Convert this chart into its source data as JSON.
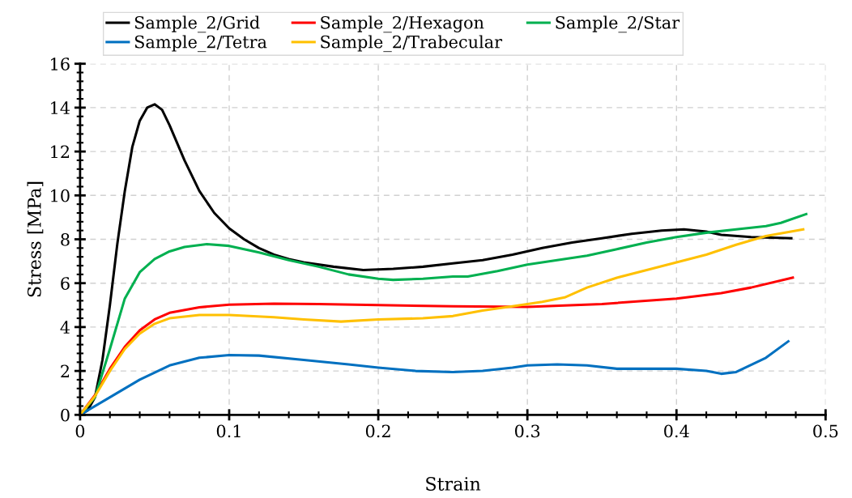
{
  "chart_data": {
    "type": "line",
    "xlabel": "Strain",
    "ylabel": "Stress [MPa]",
    "xlim": [
      0,
      0.5
    ],
    "xticks": [
      0,
      0.1,
      0.2,
      0.3,
      0.4,
      0.5
    ],
    "ylim": [
      0,
      16
    ],
    "yticks": [
      0,
      2,
      4,
      6,
      8,
      10,
      12,
      14,
      16
    ],
    "grid": true,
    "legend": "top",
    "line_style": "solid",
    "marker": "none",
    "series": [
      {
        "name": "Sample_2/Grid",
        "color": "#000000",
        "x": [
          0,
          0.005,
          0.01,
          0.015,
          0.02,
          0.025,
          0.03,
          0.035,
          0.04,
          0.045,
          0.05,
          0.055,
          0.06,
          0.07,
          0.08,
          0.09,
          0.1,
          0.11,
          0.12,
          0.13,
          0.14,
          0.15,
          0.17,
          0.19,
          0.21,
          0.23,
          0.25,
          0.27,
          0.29,
          0.31,
          0.33,
          0.35,
          0.37,
          0.39,
          0.405,
          0.42,
          0.43,
          0.45,
          0.477
        ],
        "values": [
          0,
          0.2,
          0.8,
          2.5,
          5,
          7.8,
          10.2,
          12.2,
          13.4,
          14.0,
          14.15,
          13.9,
          13.2,
          11.6,
          10.2,
          9.2,
          8.5,
          8.0,
          7.6,
          7.3,
          7.1,
          6.95,
          6.75,
          6.6,
          6.65,
          6.75,
          6.9,
          7.05,
          7.3,
          7.6,
          7.85,
          8.05,
          8.25,
          8.4,
          8.45,
          8.35,
          8.2,
          8.1,
          8.05
        ]
      },
      {
        "name": "Sample_2/Hexagon",
        "color": "#ff0000",
        "x": [
          0,
          0.01,
          0.02,
          0.03,
          0.04,
          0.05,
          0.06,
          0.08,
          0.1,
          0.13,
          0.16,
          0.2,
          0.25,
          0.3,
          0.35,
          0.4,
          0.43,
          0.45,
          0.478
        ],
        "values": [
          0,
          0.9,
          2.1,
          3.1,
          3.85,
          4.35,
          4.65,
          4.9,
          5.02,
          5.07,
          5.05,
          5.0,
          4.95,
          4.92,
          5.05,
          5.3,
          5.55,
          5.8,
          6.25
        ]
      },
      {
        "name": "Sample_2/Star",
        "color": "#00b050",
        "x": [
          0,
          0.01,
          0.02,
          0.03,
          0.04,
          0.05,
          0.06,
          0.07,
          0.085,
          0.1,
          0.12,
          0.14,
          0.16,
          0.18,
          0.2,
          0.21,
          0.23,
          0.25,
          0.26,
          0.28,
          0.3,
          0.32,
          0.34,
          0.36,
          0.38,
          0.4,
          0.42,
          0.44,
          0.46,
          0.47,
          0.487
        ],
        "values": [
          0,
          0.8,
          3.0,
          5.3,
          6.5,
          7.1,
          7.45,
          7.65,
          7.78,
          7.7,
          7.4,
          7.05,
          6.75,
          6.4,
          6.2,
          6.15,
          6.2,
          6.3,
          6.3,
          6.55,
          6.85,
          7.05,
          7.25,
          7.55,
          7.85,
          8.1,
          8.3,
          8.45,
          8.6,
          8.75,
          9.15
        ]
      },
      {
        "name": "Sample_2/Tetra",
        "color": "#0070c0",
        "x": [
          0,
          0.02,
          0.04,
          0.06,
          0.08,
          0.1,
          0.12,
          0.15,
          0.18,
          0.2,
          0.225,
          0.25,
          0.27,
          0.29,
          0.3,
          0.32,
          0.34,
          0.36,
          0.38,
          0.4,
          0.42,
          0.43,
          0.44,
          0.46,
          0.475
        ],
        "values": [
          0,
          0.8,
          1.6,
          2.25,
          2.6,
          2.72,
          2.7,
          2.5,
          2.3,
          2.15,
          2.0,
          1.95,
          2.0,
          2.15,
          2.25,
          2.3,
          2.25,
          2.1,
          2.1,
          2.1,
          2.0,
          1.87,
          1.95,
          2.6,
          3.35
        ]
      },
      {
        "name": "Sample_2/Trabecular",
        "color": "#ffc000",
        "x": [
          0,
          0.01,
          0.02,
          0.03,
          0.04,
          0.05,
          0.06,
          0.08,
          0.1,
          0.13,
          0.15,
          0.175,
          0.2,
          0.23,
          0.25,
          0.27,
          0.29,
          0.31,
          0.325,
          0.34,
          0.36,
          0.38,
          0.4,
          0.42,
          0.44,
          0.46,
          0.485
        ],
        "values": [
          0,
          0.85,
          2.0,
          3.0,
          3.7,
          4.15,
          4.4,
          4.55,
          4.55,
          4.45,
          4.35,
          4.25,
          4.35,
          4.4,
          4.5,
          4.75,
          4.95,
          5.15,
          5.35,
          5.8,
          6.25,
          6.6,
          6.95,
          7.3,
          7.75,
          8.15,
          8.45
        ]
      }
    ]
  }
}
